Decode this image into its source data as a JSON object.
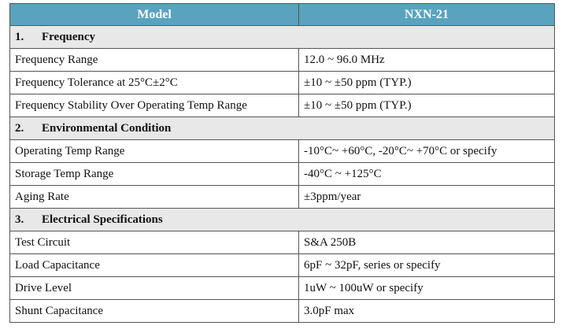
{
  "header": {
    "model_label": "Model",
    "model_value": "NXN-21"
  },
  "sections": [
    {
      "number": "1.",
      "title": "Frequency",
      "rows": [
        {
          "param": "Frequency Range",
          "value": "12.0 ~ 96.0 MHz"
        },
        {
          "param": "Frequency Tolerance at 25°C±2°C",
          "value": "±10 ~ ±50 ppm (TYP.)"
        },
        {
          "param": "Frequency Stability Over Operating Temp Range",
          "value": "±10 ~ ±50 ppm (TYP.)"
        }
      ]
    },
    {
      "number": "2.",
      "title": "Environmental Condition",
      "rows": [
        {
          "param": "Operating Temp Range",
          "value": "-10°C~ +60°C, -20°C~ +70°C or specify"
        },
        {
          "param": "Storage Temp Range",
          "value": "-40°C ~ +125°C"
        },
        {
          "param": "Aging Rate",
          "value": "±3ppm/year"
        }
      ]
    },
    {
      "number": "3.",
      "title": "Electrical Specifications",
      "rows": [
        {
          "param": "Test Circuit",
          "value": "S&A 250B"
        },
        {
          "param": "Load Capacitance",
          "value": "6pF ~ 32pF, series or specify"
        },
        {
          "param": "Drive Level",
          "value": "1uW ~ 100uW or specify"
        },
        {
          "param": "Shunt Capacitance",
          "value": "3.0pF max"
        }
      ]
    }
  ],
  "colors": {
    "header_bg": "#5aa3bf",
    "section_bg": "#e8e8e8",
    "border": "#555555"
  }
}
